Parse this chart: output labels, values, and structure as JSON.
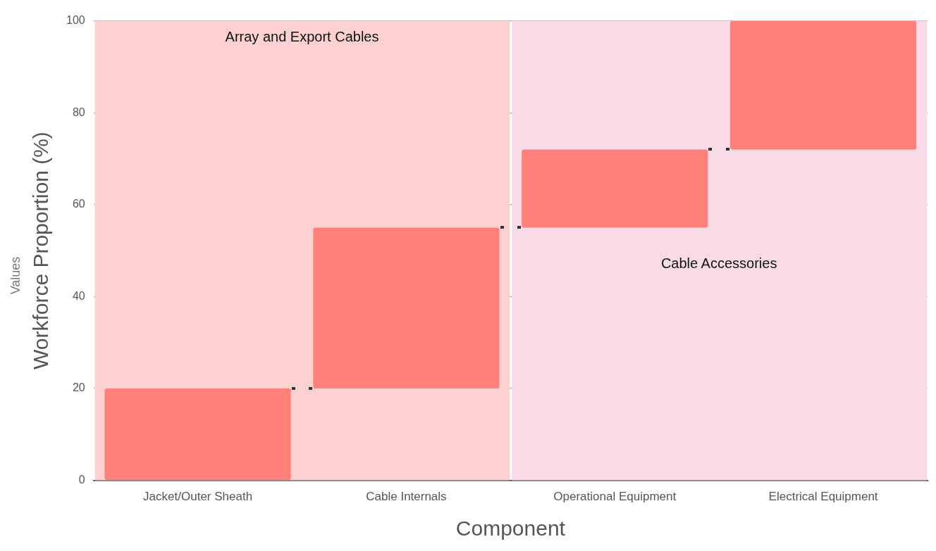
{
  "chart_data": {
    "type": "bar",
    "xlabel": "Component",
    "ylabel": "Workforce Proportion (%)",
    "categories": [
      "Jacket/Outer Sheath",
      "Cable Internals",
      "Operational Equipment",
      "Electrical Equipment"
    ],
    "values": [
      20,
      35,
      17,
      28
    ],
    "base": [
      0,
      20,
      55,
      72
    ],
    "color": "#ff7f7a",
    "ylim": [
      0,
      100
    ],
    "yticks": [
      0,
      20,
      40,
      60,
      80,
      100
    ],
    "grid": "y",
    "legend": false,
    "bands": [
      {
        "axis": "x",
        "from": "Jacket/Outer Sheath",
        "to": "Cable Internals",
        "label": "Array and Export Cables",
        "color": "#fdd1d0"
      },
      {
        "axis": "x",
        "from": "Operational Equipment",
        "to": "Electrical Equipment",
        "label": "Cable Accessories",
        "color": "#f8dbe6"
      }
    ],
    "annotations": [
      "Values"
    ]
  }
}
